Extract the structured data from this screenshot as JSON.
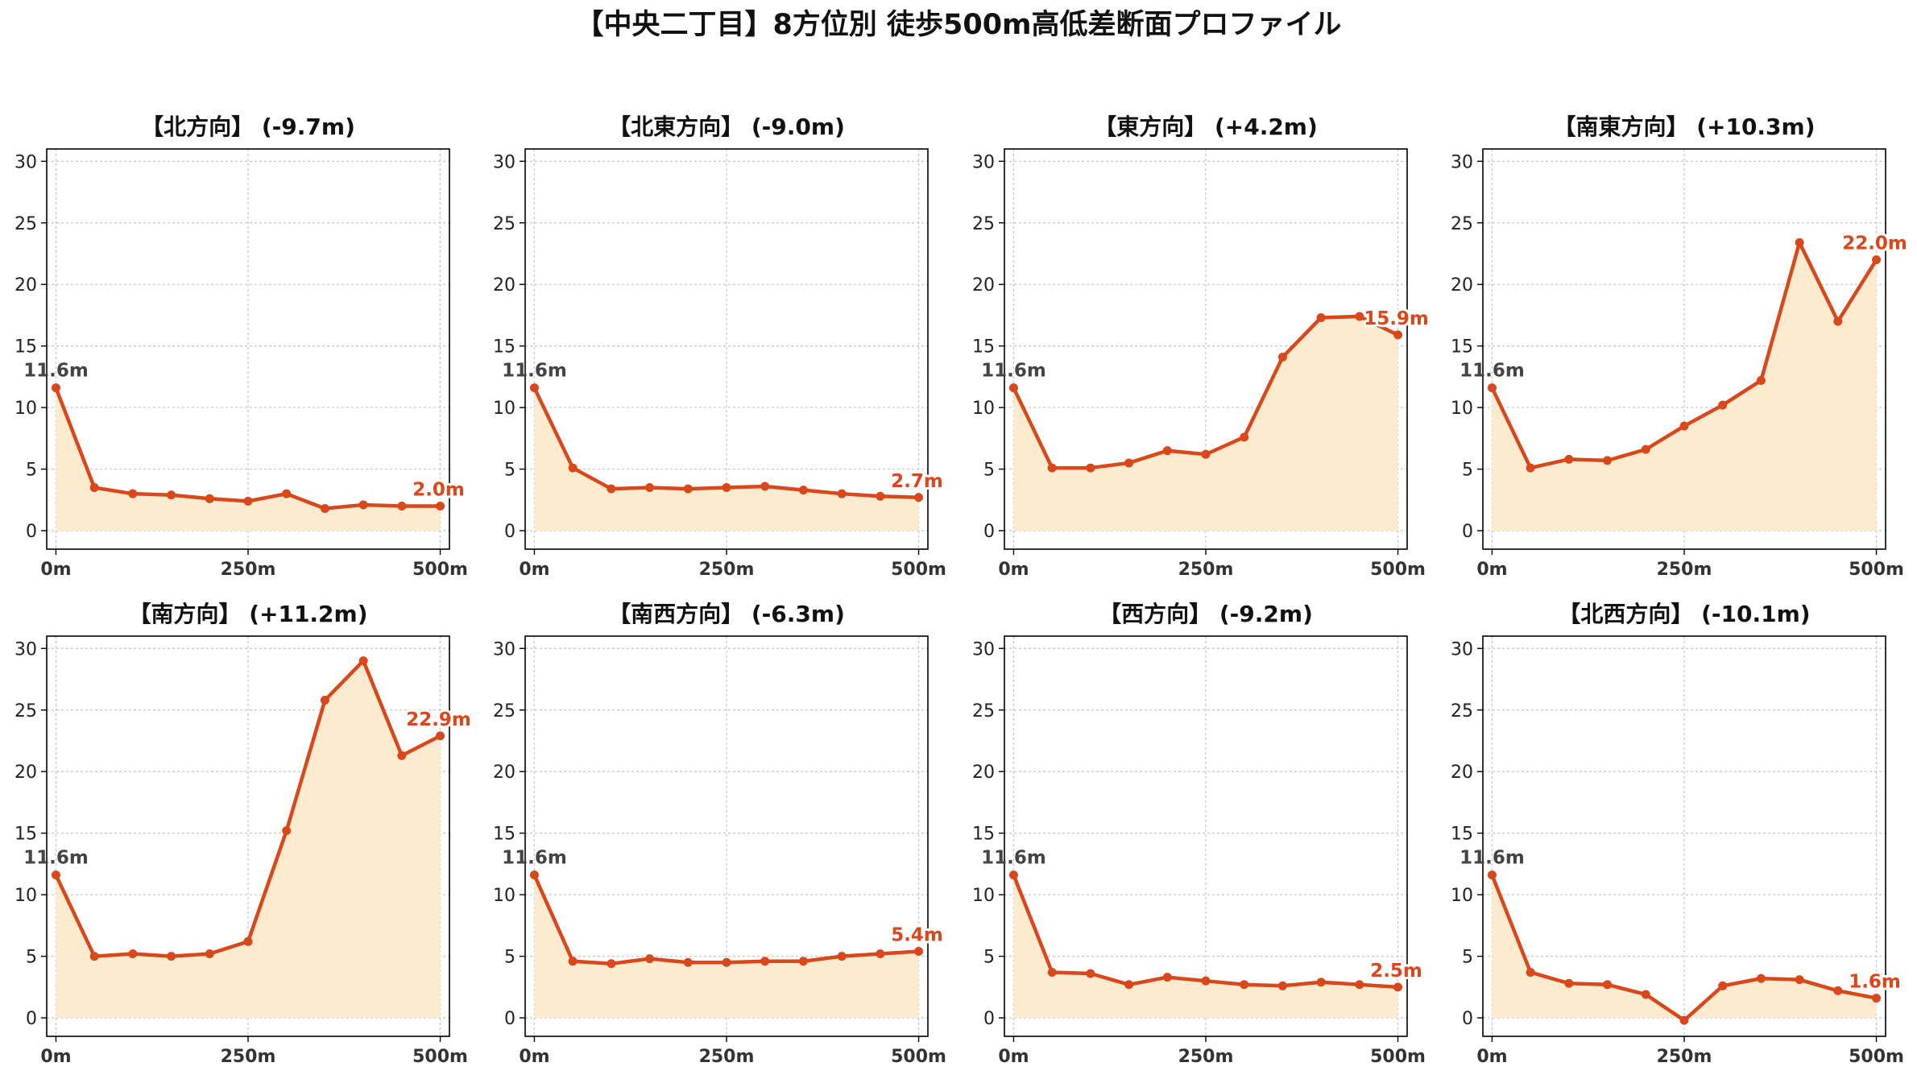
{
  "title": "【中央二丁目】8方位別 徒歩500m高低差断面プロファイル",
  "colors": {
    "line": "#d9471b",
    "fill": "#fdebd0",
    "start_label": "#444444",
    "end_label": "#d9471b",
    "grid": "#c8c8c8",
    "axis": "#000000",
    "tick_text": "#222222"
  },
  "chart_data": [
    {
      "type": "area",
      "title": "【北方向】 (-9.7m)",
      "x": [
        0,
        50,
        100,
        150,
        200,
        250,
        300,
        350,
        400,
        450,
        500
      ],
      "y": [
        11.6,
        3.5,
        3.0,
        2.9,
        2.6,
        2.4,
        3.0,
        1.8,
        2.1,
        2.0,
        2.0
      ],
      "xticks": [
        "0m",
        "250m",
        "500m"
      ],
      "yticks": [
        0,
        5,
        10,
        15,
        20,
        25,
        30
      ],
      "xlim": [
        -12,
        512
      ],
      "ylim": [
        -1.5,
        31
      ],
      "start_label": "11.6m",
      "end_label": "2.0m",
      "grid": true
    },
    {
      "type": "area",
      "title": "【北東方向】 (-9.0m)",
      "x": [
        0,
        50,
        100,
        150,
        200,
        250,
        300,
        350,
        400,
        450,
        500
      ],
      "y": [
        11.6,
        5.1,
        3.4,
        3.5,
        3.4,
        3.5,
        3.6,
        3.3,
        3.0,
        2.8,
        2.7
      ],
      "xticks": [
        "0m",
        "250m",
        "500m"
      ],
      "yticks": [
        0,
        5,
        10,
        15,
        20,
        25,
        30
      ],
      "xlim": [
        -12,
        512
      ],
      "ylim": [
        -1.5,
        31
      ],
      "start_label": "11.6m",
      "end_label": "2.7m",
      "grid": true
    },
    {
      "type": "area",
      "title": "【東方向】 (+4.2m)",
      "x": [
        0,
        50,
        100,
        150,
        200,
        250,
        300,
        350,
        400,
        450,
        500
      ],
      "y": [
        11.6,
        5.1,
        5.1,
        5.5,
        6.5,
        6.2,
        7.6,
        14.1,
        17.3,
        17.4,
        15.9
      ],
      "xticks": [
        "0m",
        "250m",
        "500m"
      ],
      "yticks": [
        0,
        5,
        10,
        15,
        20,
        25,
        30
      ],
      "xlim": [
        -12,
        512
      ],
      "ylim": [
        -1.5,
        31
      ],
      "start_label": "11.6m",
      "end_label": "15.9m",
      "grid": true
    },
    {
      "type": "area",
      "title": "【南東方向】 (+10.3m)",
      "x": [
        0,
        50,
        100,
        150,
        200,
        250,
        300,
        350,
        400,
        450,
        500
      ],
      "y": [
        11.6,
        5.1,
        5.8,
        5.7,
        6.6,
        8.5,
        10.2,
        12.2,
        23.4,
        17.0,
        22.0
      ],
      "xticks": [
        "0m",
        "250m",
        "500m"
      ],
      "yticks": [
        0,
        5,
        10,
        15,
        20,
        25,
        30
      ],
      "xlim": [
        -12,
        512
      ],
      "ylim": [
        -1.5,
        31
      ],
      "start_label": "11.6m",
      "end_label": "22.0m",
      "grid": true
    },
    {
      "type": "area",
      "title": "【南方向】 (+11.2m)",
      "x": [
        0,
        50,
        100,
        150,
        200,
        250,
        300,
        350,
        400,
        450,
        500
      ],
      "y": [
        11.6,
        5.0,
        5.2,
        5.0,
        5.2,
        6.2,
        15.2,
        25.8,
        29.0,
        21.3,
        22.9
      ],
      "xticks": [
        "0m",
        "250m",
        "500m"
      ],
      "yticks": [
        0,
        5,
        10,
        15,
        20,
        25,
        30
      ],
      "xlim": [
        -12,
        512
      ],
      "ylim": [
        -1.5,
        31
      ],
      "start_label": "11.6m",
      "end_label": "22.9m",
      "grid": true
    },
    {
      "type": "area",
      "title": "【南西方向】 (-6.3m)",
      "x": [
        0,
        50,
        100,
        150,
        200,
        250,
        300,
        350,
        400,
        450,
        500
      ],
      "y": [
        11.6,
        4.6,
        4.4,
        4.8,
        4.5,
        4.5,
        4.6,
        4.6,
        5.0,
        5.2,
        5.4
      ],
      "xticks": [
        "0m",
        "250m",
        "500m"
      ],
      "yticks": [
        0,
        5,
        10,
        15,
        20,
        25,
        30
      ],
      "xlim": [
        -12,
        512
      ],
      "ylim": [
        -1.5,
        31
      ],
      "start_label": "11.6m",
      "end_label": "5.4m",
      "grid": true
    },
    {
      "type": "area",
      "title": "【西方向】 (-9.2m)",
      "x": [
        0,
        50,
        100,
        150,
        200,
        250,
        300,
        350,
        400,
        450,
        500
      ],
      "y": [
        11.6,
        3.7,
        3.6,
        2.7,
        3.3,
        3.0,
        2.7,
        2.6,
        2.9,
        2.7,
        2.5
      ],
      "xticks": [
        "0m",
        "250m",
        "500m"
      ],
      "yticks": [
        0,
        5,
        10,
        15,
        20,
        25,
        30
      ],
      "xlim": [
        -12,
        512
      ],
      "ylim": [
        -1.5,
        31
      ],
      "start_label": "11.6m",
      "end_label": "2.5m",
      "grid": true
    },
    {
      "type": "area",
      "title": "【北西方向】 (-10.1m)",
      "x": [
        0,
        50,
        100,
        150,
        200,
        250,
        300,
        350,
        400,
        450,
        500
      ],
      "y": [
        11.6,
        3.7,
        2.8,
        2.7,
        1.9,
        -0.2,
        2.6,
        3.2,
        3.1,
        2.2,
        1.6
      ],
      "xticks": [
        "0m",
        "250m",
        "500m"
      ],
      "yticks": [
        0,
        5,
        10,
        15,
        20,
        25,
        30
      ],
      "xlim": [
        -12,
        512
      ],
      "ylim": [
        -1.5,
        31
      ],
      "start_label": "11.6m",
      "end_label": "1.6m",
      "grid": true
    }
  ]
}
